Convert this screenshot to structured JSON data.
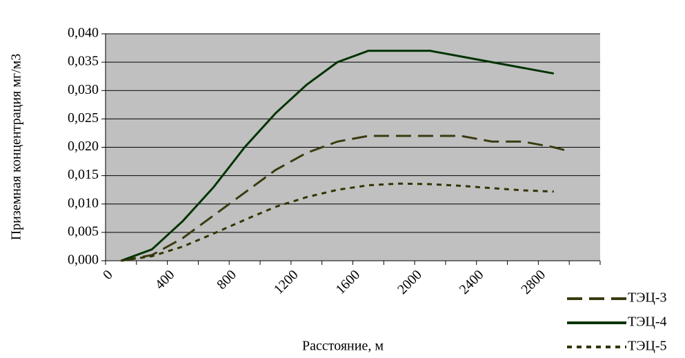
{
  "chart_data": {
    "type": "line",
    "xlabel": "Расстояние, м",
    "ylabel": "Приземная концентрация мг/м3",
    "xlim": [
      0,
      3200
    ],
    "xticks": [
      0,
      400,
      800,
      1200,
      1600,
      2000,
      2400,
      2800
    ],
    "xminorticks": [
      200,
      600,
      1000,
      1400,
      1800,
      2200,
      2600,
      3000,
      3200
    ],
    "ylim": [
      0,
      0.04
    ],
    "yticks": [
      {
        "value": 0,
        "label": "0,000"
      },
      {
        "value": 0.005,
        "label": "0,005"
      },
      {
        "value": 0.01,
        "label": "0,010"
      },
      {
        "value": 0.015,
        "label": "0,015"
      },
      {
        "value": 0.02,
        "label": "0,020"
      },
      {
        "value": 0.025,
        "label": "0,025"
      },
      {
        "value": 0.03,
        "label": "0,030"
      },
      {
        "value": 0.035,
        "label": "0,035"
      },
      {
        "value": 0.04,
        "label": "0,040"
      }
    ],
    "grid": true,
    "legend": "right",
    "series": [
      {
        "name": "ТЭЦ-3",
        "color": "#3a3a10",
        "dash": "22 10",
        "x": [
          100,
          300,
          500,
          700,
          900,
          1100,
          1300,
          1500,
          1700,
          1900,
          2100,
          2300,
          2500,
          2700,
          2900,
          3000
        ],
        "values": [
          0,
          0.001,
          0.004,
          0.008,
          0.012,
          0.016,
          0.019,
          0.021,
          0.022,
          0.022,
          0.022,
          0.022,
          0.021,
          0.021,
          0.02,
          0.0193
        ]
      },
      {
        "name": "ТЭЦ-4",
        "color": "#003300",
        "dash": "",
        "x": [
          100,
          300,
          500,
          700,
          900,
          1100,
          1300,
          1500,
          1700,
          1900,
          2100,
          2300,
          2500,
          2700,
          2900
        ],
        "values": [
          0,
          0.002,
          0.007,
          0.013,
          0.02,
          0.026,
          0.031,
          0.035,
          0.037,
          0.037,
          0.037,
          0.036,
          0.035,
          0.034,
          0.033
        ]
      },
      {
        "name": "ТЭЦ-5",
        "color": "#333300",
        "dash": "7 7",
        "x": [
          100,
          300,
          500,
          700,
          900,
          1100,
          1300,
          1500,
          1700,
          1900,
          2100,
          2300,
          2500,
          2700,
          2900
        ],
        "values": [
          0,
          0.0008,
          0.0025,
          0.0048,
          0.0072,
          0.0095,
          0.0112,
          0.0125,
          0.0133,
          0.0136,
          0.0135,
          0.0132,
          0.0128,
          0.0124,
          0.0122
        ]
      }
    ]
  }
}
